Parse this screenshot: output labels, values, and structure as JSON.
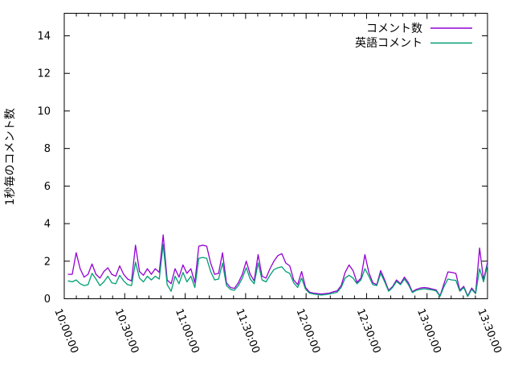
{
  "chart_data": {
    "type": "line",
    "title": "",
    "xlabel": "",
    "ylabel": "1秒毎のコメント数",
    "grid": false,
    "legend_position": "top-right-inside",
    "background_color": "#ffffff",
    "axis_color": "#000000",
    "ylim": [
      0,
      15.2
    ],
    "y_ticks": [
      0,
      2,
      4,
      6,
      8,
      10,
      12,
      14
    ],
    "x_axis": {
      "start_minutes": 0,
      "end_minutes": 210,
      "major_tick_every_minutes": 30,
      "minor_tick_every_minutes": 6,
      "tick_labels": [
        "10:00:00",
        "10:30:00",
        "11:00:00",
        "11:30:00",
        "12:00:00",
        "12:30:00",
        "13:00:00",
        "13:30:00"
      ]
    },
    "series_sampling": {
      "first_point_minutes": 2,
      "last_point_minutes": 210,
      "spacing": "even"
    },
    "series": [
      {
        "name": "コメント数",
        "color": "#9400d3",
        "values": [
          1.3,
          1.3,
          2.45,
          1.6,
          1.15,
          1.3,
          1.85,
          1.3,
          1.1,
          1.45,
          1.65,
          1.3,
          1.2,
          1.75,
          1.3,
          1.05,
          0.95,
          2.85,
          1.45,
          1.25,
          1.6,
          1.3,
          1.6,
          1.4,
          3.4,
          1.0,
          0.8,
          1.6,
          1.15,
          1.8,
          1.35,
          1.6,
          0.85,
          2.8,
          2.85,
          2.8,
          1.9,
          1.3,
          1.35,
          2.45,
          0.85,
          0.6,
          0.55,
          0.85,
          1.3,
          2.0,
          1.3,
          0.95,
          2.35,
          1.2,
          1.1,
          1.6,
          2.0,
          2.3,
          2.4,
          1.9,
          1.75,
          1.0,
          0.75,
          1.45,
          0.6,
          0.35,
          0.3,
          0.28,
          0.25,
          0.28,
          0.3,
          0.37,
          0.42,
          0.7,
          1.4,
          1.8,
          1.5,
          0.87,
          1.1,
          2.35,
          1.4,
          0.85,
          0.75,
          1.5,
          1.0,
          0.45,
          0.65,
          1.0,
          0.8,
          1.15,
          0.85,
          0.37,
          0.5,
          0.57,
          0.6,
          0.57,
          0.52,
          0.47,
          0.15,
          0.8,
          1.43,
          1.4,
          1.35,
          0.45,
          0.66,
          0.15,
          0.57,
          0.3,
          2.7,
          1.0,
          1.95
        ]
      },
      {
        "name": "英語コメント",
        "color": "#009e73",
        "values": [
          0.95,
          0.9,
          1.0,
          0.8,
          0.7,
          0.75,
          1.35,
          1.05,
          0.7,
          0.9,
          1.2,
          0.85,
          0.8,
          1.25,
          0.95,
          0.75,
          0.7,
          1.95,
          1.1,
          0.9,
          1.2,
          1.0,
          1.2,
          1.05,
          2.9,
          0.75,
          0.4,
          1.2,
          0.8,
          1.4,
          0.9,
          1.2,
          0.6,
          2.15,
          2.2,
          2.15,
          1.45,
          1.0,
          1.05,
          1.9,
          0.7,
          0.5,
          0.45,
          0.7,
          1.1,
          1.65,
          1.05,
          0.8,
          1.9,
          1.0,
          0.9,
          1.25,
          1.55,
          1.65,
          1.7,
          1.45,
          1.35,
          0.85,
          0.6,
          1.1,
          0.5,
          0.3,
          0.25,
          0.22,
          0.2,
          0.22,
          0.25,
          0.3,
          0.35,
          0.6,
          1.1,
          1.25,
          1.1,
          0.8,
          1.0,
          1.6,
          1.2,
          0.75,
          0.7,
          1.35,
          0.9,
          0.4,
          0.6,
          0.92,
          0.75,
          1.05,
          0.75,
          0.33,
          0.45,
          0.5,
          0.53,
          0.5,
          0.47,
          0.42,
          0.13,
          0.65,
          1.05,
          1.0,
          0.98,
          0.4,
          0.6,
          0.12,
          0.5,
          0.27,
          1.6,
          0.9,
          1.8
        ]
      }
    ]
  }
}
